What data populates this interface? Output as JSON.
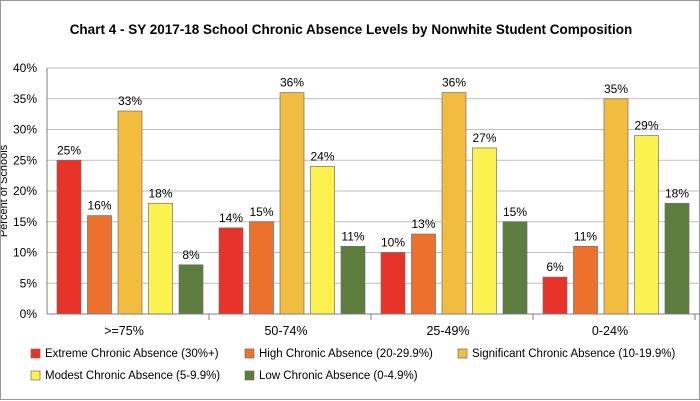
{
  "chart_data": {
    "type": "bar",
    "title": "Chart 4 - SY 2017-18 School Chronic Absence Levels by Nonwhite Student Composition",
    "ylabel": "Percent of Schools",
    "xlabel": "",
    "ylim": [
      0,
      40
    ],
    "yticks": [
      "0%",
      "5%",
      "10%",
      "15%",
      "20%",
      "25%",
      "30%",
      "35%",
      "40%"
    ],
    "grid": true,
    "legend_position": "bottom",
    "categories": [
      ">=75%",
      "50-74%",
      "25-49%",
      "0-24%"
    ],
    "series": [
      {
        "name": "Extreme Chronic Absence (30%+)",
        "color": "#e8332a",
        "values": [
          25,
          14,
          10,
          6
        ],
        "value_labels": [
          "25%",
          "14%",
          "10%",
          "6%"
        ]
      },
      {
        "name": "High Chronic Absence (20-29.9%)",
        "color": "#ec712c",
        "values": [
          16,
          15,
          13,
          11
        ],
        "value_labels": [
          "16%",
          "15%",
          "13%",
          "11%"
        ]
      },
      {
        "name": "Significant Chronic Absence (10-19.9%)",
        "color": "#f2bd3f",
        "values": [
          33,
          36,
          36,
          35
        ],
        "value_labels": [
          "33%",
          "36%",
          "36%",
          "35%"
        ]
      },
      {
        "name": "Modest Chronic Absence (5-9.9%)",
        "color": "#fbf250",
        "values": [
          18,
          24,
          27,
          29
        ],
        "value_labels": [
          "18%",
          "24%",
          "27%",
          "29%"
        ]
      },
      {
        "name": "Low Chronic Absence (0-4.9%)",
        "color": "#5d7d3e",
        "values": [
          8,
          11,
          15,
          18
        ],
        "value_labels": [
          "8%",
          "11%",
          "15%",
          "18%"
        ]
      }
    ]
  }
}
